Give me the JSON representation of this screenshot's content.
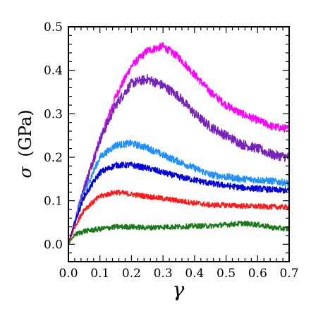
{
  "chart_data": {
    "type": "line",
    "title": "",
    "xlabel": "γ",
    "ylabel_symbol": "σ",
    "ylabel_unit": "(GPa)",
    "xlim": [
      0.0,
      0.7
    ],
    "ylim": [
      -0.04,
      0.5
    ],
    "xticks": [
      "0.0",
      "0.1",
      "0.2",
      "0.3",
      "0.4",
      "0.5",
      "0.6",
      "0.7"
    ],
    "yticks": [
      "0.0",
      "0.1",
      "0.2",
      "0.3",
      "0.4",
      "0.5"
    ],
    "grid": false,
    "legend": "none",
    "series": [
      {
        "color": "#ff00ff",
        "noise": 0.009,
        "x": [
          0.0,
          0.02,
          0.05,
          0.1,
          0.15,
          0.2,
          0.25,
          0.3,
          0.35,
          0.4,
          0.45,
          0.5,
          0.55,
          0.6,
          0.65,
          0.7
        ],
        "y": [
          0.0,
          0.05,
          0.13,
          0.24,
          0.34,
          0.41,
          0.445,
          0.455,
          0.43,
          0.39,
          0.35,
          0.32,
          0.3,
          0.285,
          0.27,
          0.265
        ]
      },
      {
        "color": "#7722bb",
        "noise": 0.011,
        "x": [
          0.0,
          0.02,
          0.05,
          0.1,
          0.15,
          0.2,
          0.25,
          0.3,
          0.35,
          0.4,
          0.45,
          0.5,
          0.55,
          0.6,
          0.65,
          0.7
        ],
        "y": [
          0.0,
          0.05,
          0.13,
          0.24,
          0.32,
          0.37,
          0.38,
          0.365,
          0.34,
          0.3,
          0.27,
          0.25,
          0.23,
          0.22,
          0.205,
          0.2
        ]
      },
      {
        "color": "#1e90ff",
        "noise": 0.008,
        "x": [
          0.0,
          0.02,
          0.05,
          0.1,
          0.15,
          0.2,
          0.25,
          0.3,
          0.35,
          0.4,
          0.45,
          0.5,
          0.55,
          0.6,
          0.65,
          0.7
        ],
        "y": [
          0.0,
          0.05,
          0.12,
          0.2,
          0.228,
          0.232,
          0.222,
          0.205,
          0.19,
          0.175,
          0.16,
          0.155,
          0.15,
          0.148,
          0.145,
          0.14
        ]
      },
      {
        "color": "#0000e0",
        "noise": 0.007,
        "x": [
          0.0,
          0.02,
          0.05,
          0.1,
          0.15,
          0.2,
          0.25,
          0.3,
          0.35,
          0.4,
          0.45,
          0.5,
          0.55,
          0.6,
          0.65,
          0.7
        ],
        "y": [
          0.0,
          0.05,
          0.11,
          0.165,
          0.182,
          0.182,
          0.175,
          0.165,
          0.155,
          0.148,
          0.14,
          0.135,
          0.13,
          0.128,
          0.125,
          0.123
        ]
      },
      {
        "color": "#ff1a1a",
        "noise": 0.006,
        "x": [
          0.0,
          0.02,
          0.05,
          0.1,
          0.15,
          0.2,
          0.25,
          0.3,
          0.35,
          0.4,
          0.45,
          0.5,
          0.55,
          0.6,
          0.65,
          0.7
        ],
        "y": [
          0.0,
          0.04,
          0.08,
          0.11,
          0.12,
          0.115,
          0.11,
          0.105,
          0.1,
          0.095,
          0.09,
          0.09,
          0.088,
          0.087,
          0.086,
          0.085
        ]
      },
      {
        "color": "#1a7a1a",
        "noise": 0.006,
        "x": [
          0.0,
          0.02,
          0.05,
          0.1,
          0.15,
          0.2,
          0.25,
          0.3,
          0.35,
          0.4,
          0.45,
          0.5,
          0.55,
          0.6,
          0.65,
          0.7
        ],
        "y": [
          0.0,
          0.022,
          0.03,
          0.035,
          0.04,
          0.04,
          0.038,
          0.04,
          0.04,
          0.042,
          0.042,
          0.045,
          0.048,
          0.045,
          0.038,
          0.035
        ]
      }
    ]
  }
}
